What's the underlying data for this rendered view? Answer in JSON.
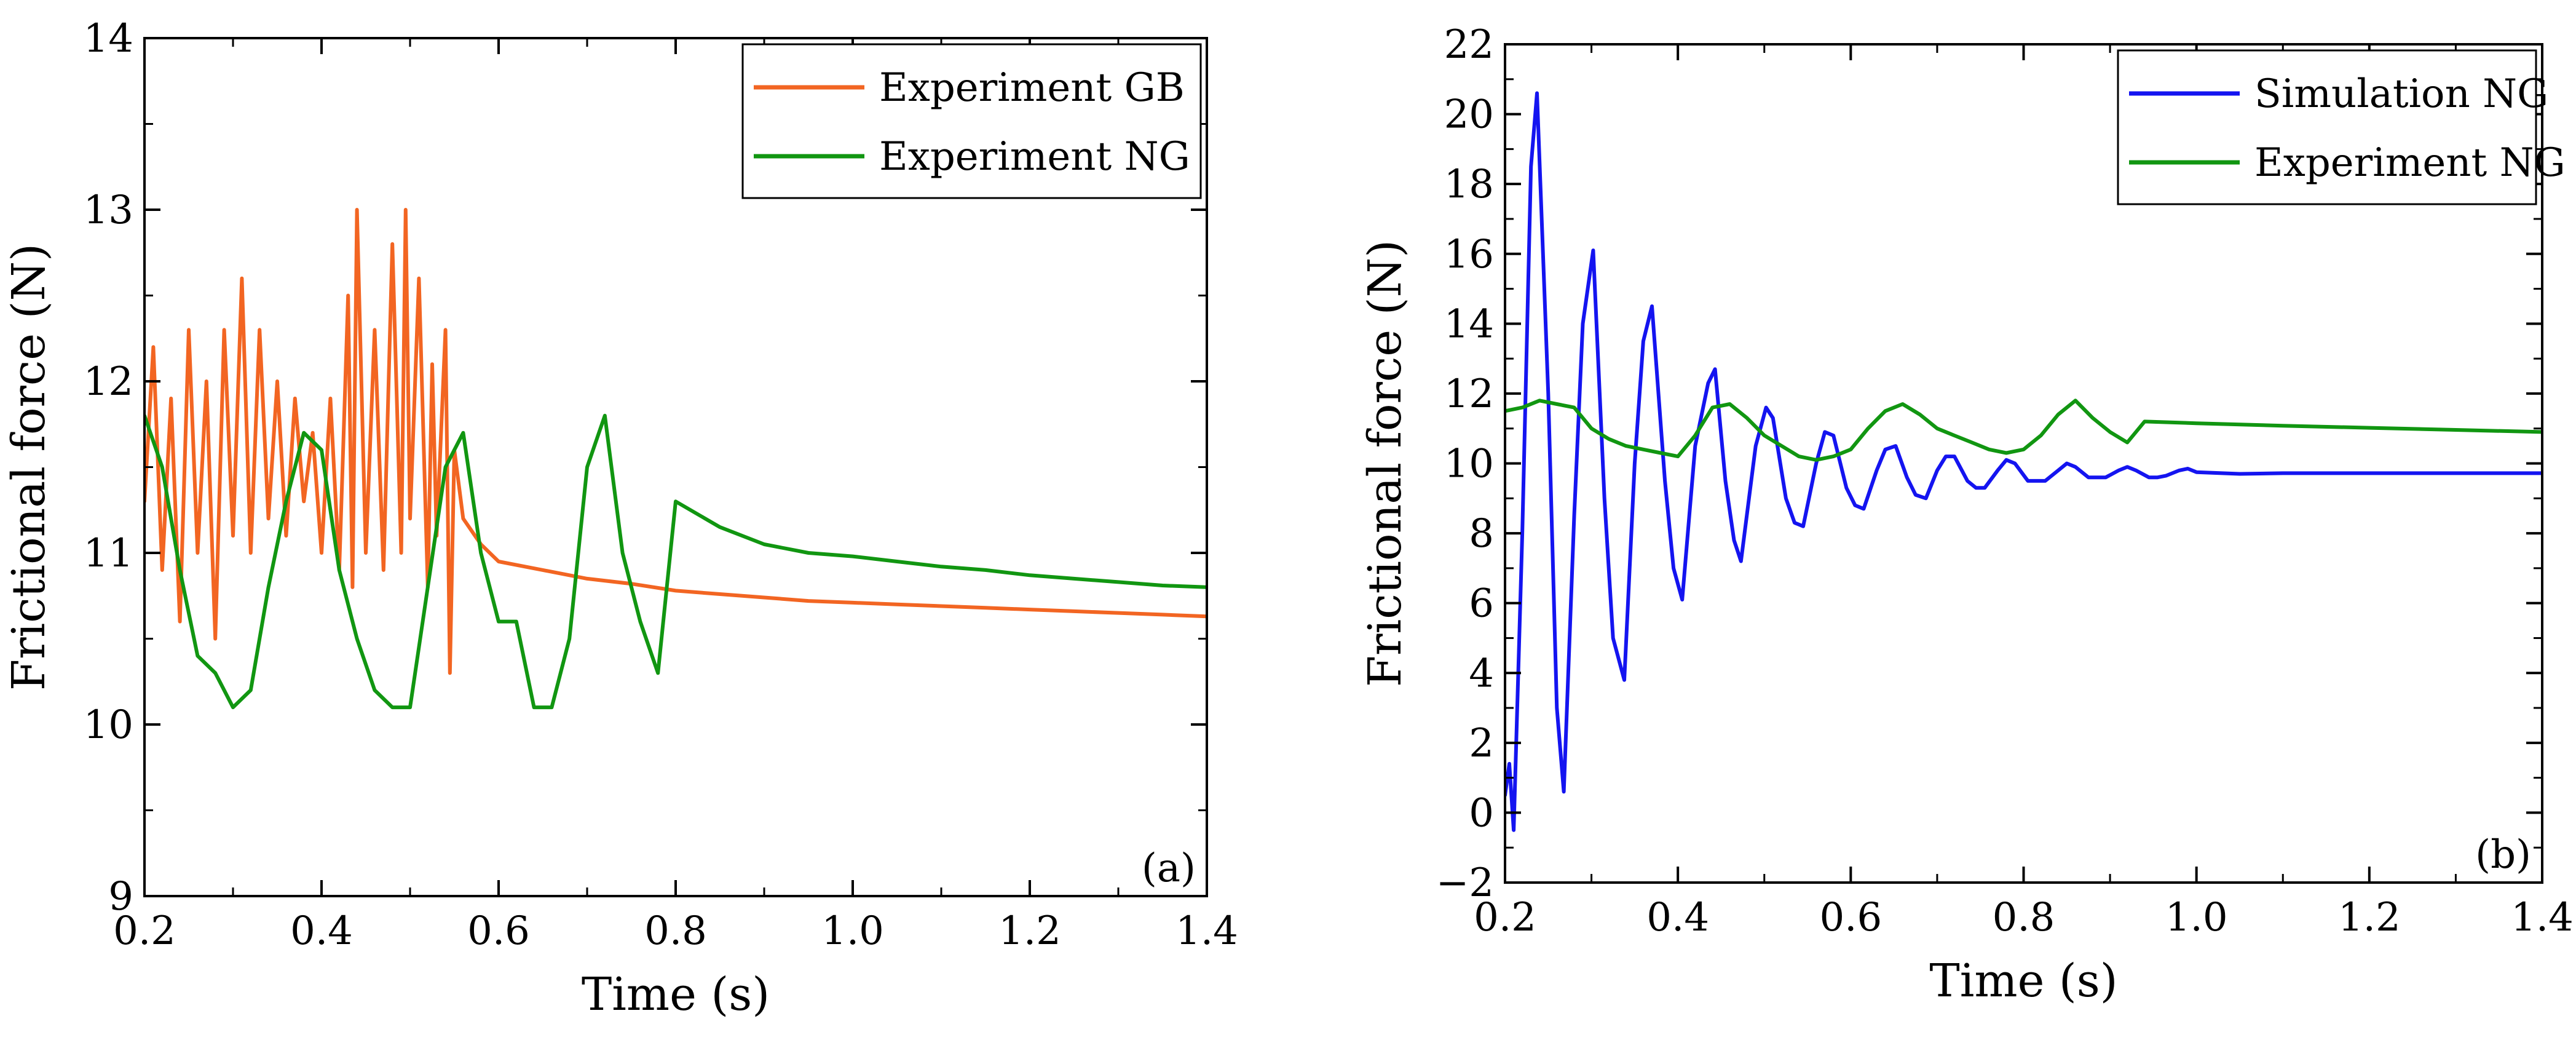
{
  "chart_data": [
    {
      "type": "line",
      "panel_label": "(a)",
      "xlabel": "Time (s)",
      "ylabel": "Frictional force (N)",
      "xlim": [
        0.2,
        1.4
      ],
      "ylim": [
        9,
        14
      ],
      "xticks": [
        0.2,
        0.4,
        0.6,
        0.8,
        1.0,
        1.2,
        1.4
      ],
      "xtick_labels": [
        "0.2",
        "0.4",
        "0.6",
        "0.8",
        "1.0",
        "1.2",
        "1.4"
      ],
      "yticks": [
        9,
        10,
        11,
        12,
        13,
        14
      ],
      "ytick_labels": [
        "9",
        "10",
        "11",
        "12",
        "13",
        "14"
      ],
      "legend_position": "top-right",
      "series": [
        {
          "name": "Experiment GB",
          "color": "#f26522",
          "x": [
            0.2,
            0.21,
            0.22,
            0.23,
            0.24,
            0.25,
            0.26,
            0.27,
            0.28,
            0.29,
            0.3,
            0.31,
            0.32,
            0.33,
            0.34,
            0.35,
            0.36,
            0.37,
            0.38,
            0.39,
            0.4,
            0.41,
            0.42,
            0.43,
            0.435,
            0.44,
            0.45,
            0.46,
            0.47,
            0.48,
            0.49,
            0.495,
            0.5,
            0.51,
            0.52,
            0.525,
            0.53,
            0.54,
            0.545,
            0.55,
            0.56,
            0.58,
            0.6,
            0.65,
            0.7,
            0.75,
            0.8,
            0.85,
            0.9,
            0.95,
            1.0,
            1.05,
            1.1,
            1.15,
            1.2,
            1.25,
            1.3,
            1.35,
            1.4
          ],
          "y": [
            11.3,
            12.2,
            10.9,
            11.9,
            10.6,
            12.3,
            11.0,
            12.0,
            10.5,
            12.3,
            11.1,
            12.6,
            11.0,
            12.3,
            11.2,
            12.0,
            11.1,
            11.9,
            11.3,
            11.7,
            11.0,
            11.9,
            10.9,
            12.5,
            10.8,
            13.0,
            11.0,
            12.3,
            10.9,
            12.8,
            11.0,
            13.0,
            11.2,
            12.6,
            10.8,
            12.1,
            11.1,
            12.3,
            10.3,
            11.6,
            11.2,
            11.05,
            10.95,
            10.9,
            10.85,
            10.82,
            10.78,
            10.76,
            10.74,
            10.72,
            10.71,
            10.7,
            10.69,
            10.68,
            10.67,
            10.66,
            10.65,
            10.64,
            10.63
          ]
        },
        {
          "name": "Experiment NG",
          "color": "#119611",
          "x": [
            0.2,
            0.22,
            0.24,
            0.26,
            0.28,
            0.3,
            0.32,
            0.34,
            0.36,
            0.38,
            0.4,
            0.42,
            0.44,
            0.46,
            0.48,
            0.5,
            0.52,
            0.54,
            0.56,
            0.58,
            0.6,
            0.62,
            0.64,
            0.66,
            0.68,
            0.7,
            0.72,
            0.74,
            0.76,
            0.78,
            0.8,
            0.85,
            0.9,
            0.95,
            1.0,
            1.05,
            1.1,
            1.15,
            1.2,
            1.25,
            1.3,
            1.35,
            1.4
          ],
          "y": [
            11.8,
            11.5,
            10.9,
            10.4,
            10.3,
            10.1,
            10.2,
            10.8,
            11.3,
            11.7,
            11.6,
            10.9,
            10.5,
            10.2,
            10.1,
            10.1,
            10.8,
            11.5,
            11.7,
            11.0,
            10.6,
            10.6,
            10.1,
            10.1,
            10.5,
            11.5,
            11.8,
            11.0,
            10.6,
            10.3,
            11.3,
            11.15,
            11.05,
            11.0,
            10.98,
            10.95,
            10.92,
            10.9,
            10.87,
            10.85,
            10.83,
            10.81,
            10.8
          ]
        }
      ]
    },
    {
      "type": "line",
      "panel_label": "(b)",
      "xlabel": "Time (s)",
      "ylabel": "Frictional force (N)",
      "xlim": [
        0.2,
        1.4
      ],
      "ylim": [
        -2,
        22
      ],
      "xticks": [
        0.2,
        0.4,
        0.6,
        0.8,
        1.0,
        1.2,
        1.4
      ],
      "xtick_labels": [
        "0.2",
        "0.4",
        "0.6",
        "0.8",
        "1.0",
        "1.2",
        "1.4"
      ],
      "yticks": [
        -2,
        0,
        2,
        4,
        6,
        8,
        10,
        12,
        14,
        16,
        18,
        20,
        22
      ],
      "ytick_labels": [
        "−2",
        "0",
        "2",
        "4",
        "6",
        "8",
        "10",
        "12",
        "14",
        "16",
        "18",
        "20",
        "22"
      ],
      "legend_position": "top-right",
      "series": [
        {
          "name": "Simulation NG",
          "color": "#1414f0",
          "x": [
            0.2,
            0.205,
            0.21,
            0.22,
            0.23,
            0.237,
            0.25,
            0.26,
            0.268,
            0.28,
            0.29,
            0.302,
            0.315,
            0.325,
            0.338,
            0.35,
            0.36,
            0.37,
            0.385,
            0.395,
            0.405,
            0.42,
            0.435,
            0.443,
            0.455,
            0.465,
            0.473,
            0.49,
            0.502,
            0.51,
            0.525,
            0.535,
            0.545,
            0.56,
            0.57,
            0.58,
            0.595,
            0.605,
            0.615,
            0.63,
            0.64,
            0.652,
            0.665,
            0.675,
            0.687,
            0.7,
            0.71,
            0.72,
            0.735,
            0.745,
            0.755,
            0.77,
            0.78,
            0.79,
            0.805,
            0.815,
            0.825,
            0.84,
            0.85,
            0.86,
            0.875,
            0.885,
            0.895,
            0.91,
            0.92,
            0.93,
            0.945,
            0.955,
            0.965,
            0.98,
            0.99,
            1.0,
            1.05,
            1.1,
            1.15,
            1.2,
            1.25,
            1.3,
            1.35,
            1.4
          ],
          "y": [
            0.5,
            1.4,
            -0.5,
            8.0,
            18.5,
            20.6,
            12.0,
            3.0,
            0.6,
            8.5,
            14.0,
            16.1,
            9.0,
            5.0,
            3.8,
            10.0,
            13.5,
            14.5,
            9.5,
            7.0,
            6.1,
            10.5,
            12.3,
            12.7,
            9.5,
            7.8,
            7.2,
            10.5,
            11.6,
            11.3,
            9.0,
            8.3,
            8.2,
            10.0,
            10.9,
            10.8,
            9.3,
            8.8,
            8.7,
            9.8,
            10.4,
            10.5,
            9.6,
            9.1,
            9.0,
            9.8,
            10.2,
            10.2,
            9.5,
            9.3,
            9.3,
            9.8,
            10.1,
            10.0,
            9.5,
            9.5,
            9.5,
            9.8,
            10.0,
            9.9,
            9.6,
            9.6,
            9.6,
            9.8,
            9.9,
            9.8,
            9.6,
            9.6,
            9.65,
            9.8,
            9.85,
            9.75,
            9.7,
            9.72,
            9.72,
            9.72,
            9.72,
            9.72,
            9.72,
            9.72
          ]
        },
        {
          "name": "Experiment NG",
          "color": "#119611",
          "x": [
            0.2,
            0.22,
            0.24,
            0.26,
            0.28,
            0.3,
            0.32,
            0.34,
            0.36,
            0.38,
            0.4,
            0.42,
            0.44,
            0.46,
            0.48,
            0.5,
            0.52,
            0.54,
            0.56,
            0.58,
            0.6,
            0.62,
            0.64,
            0.66,
            0.68,
            0.7,
            0.72,
            0.74,
            0.76,
            0.78,
            0.8,
            0.82,
            0.84,
            0.86,
            0.88,
            0.9,
            0.92,
            0.94,
            1.0,
            1.1,
            1.2,
            1.3,
            1.4
          ],
          "y": [
            11.5,
            11.6,
            11.8,
            11.7,
            11.6,
            11.0,
            10.7,
            10.5,
            10.4,
            10.3,
            10.2,
            10.8,
            11.6,
            11.7,
            11.3,
            10.8,
            10.5,
            10.2,
            10.1,
            10.2,
            10.4,
            11.0,
            11.5,
            11.7,
            11.4,
            11.0,
            10.8,
            10.6,
            10.4,
            10.3,
            10.4,
            10.8,
            11.4,
            11.8,
            11.3,
            10.9,
            10.6,
            11.2,
            11.15,
            11.08,
            11.02,
            10.96,
            10.9
          ]
        }
      ]
    }
  ]
}
